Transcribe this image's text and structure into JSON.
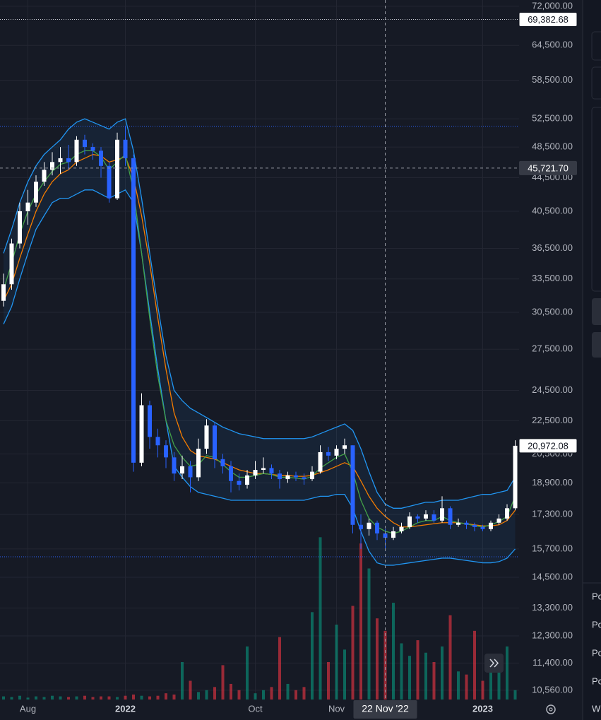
{
  "chart_data": {
    "type": "candlestick",
    "log_scale": true,
    "grid": true,
    "ylim": [
      10290,
      73270
    ],
    "yticks": [
      {
        "value": 72000,
        "label": "72,000.00"
      },
      {
        "value": 64500,
        "label": "64,500.00"
      },
      {
        "value": 58500,
        "label": "58,500.00"
      },
      {
        "value": 52500,
        "label": "52,500.00"
      },
      {
        "value": 48500,
        "label": "48,500.00"
      },
      {
        "value": 44500,
        "label": "44,500.00"
      },
      {
        "value": 40500,
        "label": "40,500.00"
      },
      {
        "value": 36500,
        "label": "36,500.00"
      },
      {
        "value": 33500,
        "label": "33,500.00"
      },
      {
        "value": 30500,
        "label": "30,500.00"
      },
      {
        "value": 27500,
        "label": "27,500.00"
      },
      {
        "value": 24500,
        "label": "24,500.00"
      },
      {
        "value": 22500,
        "label": "22,500.00"
      },
      {
        "value": 20500,
        "label": "20,500.00"
      },
      {
        "value": 18900,
        "label": "18,900.00"
      },
      {
        "value": 17300,
        "label": "17,300.00"
      },
      {
        "value": 15700,
        "label": "15,700.00"
      },
      {
        "value": 14500,
        "label": "14,500.00"
      },
      {
        "value": 13300,
        "label": "13,300.00"
      },
      {
        "value": 12300,
        "label": "12,300.00"
      },
      {
        "value": 11400,
        "label": "11,400.00"
      },
      {
        "value": 10560,
        "label": "10,560.00"
      }
    ],
    "categories": [
      null,
      null,
      null,
      "Aug",
      null,
      null,
      null,
      null,
      null,
      null,
      null,
      null,
      null,
      null,
      null,
      "2022",
      null,
      null,
      null,
      null,
      null,
      null,
      null,
      null,
      null,
      null,
      null,
      null,
      null,
      null,
      null,
      "Oct",
      null,
      null,
      null,
      null,
      null,
      null,
      null,
      null,
      null,
      "Nov",
      null,
      null,
      null,
      null,
      null,
      "22 Nov '22",
      null,
      null,
      null,
      null,
      null,
      null,
      null,
      null,
      null,
      null,
      null,
      "2023",
      null,
      null,
      null,
      null
    ],
    "up_color": "#ffffff",
    "down_color": "#2962ff",
    "open": [
      31500,
      33000,
      37000,
      40500,
      41500,
      44000,
      45500,
      46500,
      47000,
      46500,
      49500,
      48500,
      48000,
      46000,
      42000,
      49500,
      47000,
      20000,
      23500,
      21500,
      21000,
      20300,
      19400,
      19800,
      19200,
      20800,
      22200,
      20200,
      19800,
      19000,
      18800,
      19300,
      19600,
      19700,
      19400,
      19100,
      19300,
      19200,
      19100,
      19500,
      20600,
      20400,
      20800,
      21000,
      16800,
      16600,
      16900,
      16400,
      16200,
      16500,
      16700,
      17200,
      17100,
      17300,
      17000,
      17600,
      16800,
      16900,
      16800,
      16700,
      16600,
      16900,
      17100,
      17600
    ],
    "high": [
      34000,
      37500,
      41500,
      43000,
      44800,
      46500,
      47800,
      48500,
      48800,
      50000,
      50200,
      49000,
      48500,
      46500,
      50500,
      51500,
      47500,
      24300,
      23800,
      22000,
      21300,
      20600,
      20400,
      20100,
      21400,
      22600,
      22400,
      20500,
      20100,
      19400,
      19600,
      20100,
      20300,
      19900,
      19600,
      19500,
      19500,
      19400,
      19800,
      21000,
      20900,
      21000,
      21400,
      21000,
      17300,
      17100,
      17000,
      16600,
      16700,
      16900,
      17400,
      17300,
      17500,
      17500,
      18200,
      17700,
      17100,
      17000,
      16900,
      16800,
      17000,
      17300,
      17800,
      21300
    ],
    "low": [
      31000,
      32500,
      36500,
      39000,
      41000,
      43500,
      44800,
      45000,
      45500,
      46000,
      47500,
      46800,
      44500,
      41500,
      41800,
      46000,
      19500,
      19800,
      20800,
      20300,
      19700,
      19000,
      19100,
      18400,
      19000,
      20500,
      19700,
      19400,
      18400,
      18500,
      18600,
      19100,
      19400,
      19100,
      18600,
      18900,
      19000,
      18800,
      19000,
      19400,
      20100,
      20200,
      20500,
      16400,
      15700,
      16300,
      16100,
      15600,
      16100,
      16400,
      16600,
      16900,
      17000,
      16900,
      16900,
      16600,
      16700,
      16600,
      16500,
      16500,
      16500,
      16800,
      17000,
      17500
    ],
    "close": [
      33000,
      37000,
      40500,
      41500,
      44000,
      45500,
      46500,
      47000,
      46500,
      49500,
      48500,
      48000,
      46000,
      42000,
      49500,
      47000,
      20000,
      23500,
      21500,
      21000,
      20300,
      19400,
      19800,
      19200,
      20800,
      22200,
      20200,
      19800,
      19000,
      18800,
      19300,
      19600,
      19700,
      19400,
      19100,
      19300,
      19200,
      19100,
      19500,
      20600,
      20400,
      20800,
      21000,
      16800,
      16600,
      16900,
      16400,
      16200,
      16500,
      16700,
      17200,
      17100,
      17300,
      17000,
      17600,
      16800,
      16900,
      16800,
      16700,
      16600,
      16900,
      17100,
      17600,
      20972.08
    ],
    "band": {
      "color": "#2196f3",
      "fill": "rgba(33,150,243,0.08)",
      "upper": [
        36000,
        38500,
        41500,
        44000,
        46000,
        47500,
        48500,
        49500,
        51000,
        52000,
        52500,
        52000,
        51500,
        51000,
        52000,
        52500,
        48000,
        42000,
        36000,
        31000,
        27000,
        24500,
        23800,
        23300,
        23000,
        22700,
        22400,
        22100,
        21900,
        21700,
        21600,
        21500,
        21400,
        21400,
        21400,
        21400,
        21400,
        21400,
        21500,
        21700,
        21900,
        22100,
        22300,
        21900,
        20800,
        19500,
        18400,
        17800,
        17600,
        17600,
        17700,
        17800,
        17900,
        17900,
        18000,
        18000,
        18000,
        18100,
        18200,
        18300,
        18300,
        18400,
        18500,
        19200
      ],
      "lower": [
        29500,
        31000,
        33500,
        36000,
        38500,
        40000,
        41500,
        42000,
        42000,
        42500,
        43000,
        43000,
        42500,
        42000,
        42500,
        43000,
        41500,
        36000,
        30500,
        26000,
        22500,
        19800,
        19200,
        18700,
        18400,
        18300,
        18200,
        18100,
        18000,
        18000,
        18000,
        18000,
        18000,
        18000,
        18000,
        18000,
        18000,
        18000,
        18100,
        18200,
        18200,
        18300,
        18300,
        17600,
        16500,
        15600,
        15100,
        15000,
        15000,
        15050,
        15100,
        15150,
        15200,
        15250,
        15300,
        15300,
        15250,
        15200,
        15150,
        15100,
        15100,
        15150,
        15300,
        15700
      ]
    },
    "lines": [
      {
        "color": "#f57c00",
        "values": [
          31500,
          33000,
          35500,
          38000,
          40500,
          42500,
          44000,
          45000,
          45500,
          46500,
          47000,
          47500,
          47300,
          46500,
          46800,
          47200,
          44500,
          40000,
          35000,
          30000,
          26000,
          23000,
          21500,
          20700,
          20400,
          20300,
          20200,
          20000,
          19800,
          19600,
          19500,
          19400,
          19400,
          19350,
          19300,
          19300,
          19250,
          19250,
          19300,
          19450,
          19600,
          19800,
          20000,
          19800,
          19000,
          18200,
          17600,
          17200,
          16900,
          16700,
          16700,
          16750,
          16800,
          16850,
          16900,
          16900,
          16900,
          16850,
          16800,
          16750,
          16750,
          16800,
          17000,
          17500
        ]
      },
      {
        "color": "#43a047",
        "values": [
          32500,
          35000,
          38000,
          40500,
          42500,
          44000,
          45300,
          46200,
          46500,
          47500,
          48000,
          48000,
          47200,
          45500,
          46500,
          47500,
          43000,
          36000,
          30000,
          25500,
          22500,
          21000,
          20300,
          19800,
          19900,
          20400,
          20300,
          19900,
          19500,
          19200,
          19200,
          19300,
          19400,
          19350,
          19200,
          19200,
          19150,
          19100,
          19250,
          19700,
          20000,
          20300,
          20500,
          19500,
          18000,
          17100,
          16700,
          16500,
          16400,
          16500,
          16700,
          16900,
          17000,
          17000,
          17200,
          17000,
          16900,
          16850,
          16750,
          16700,
          16800,
          16950,
          17200,
          18200
        ]
      }
    ],
    "volume": {
      "lim": [
        0,
        300
      ],
      "up_color": "rgba(8,153,129,0.6)",
      "down_color": "rgba(242,54,69,0.6)",
      "values": [
        5,
        4,
        6,
        3,
        5,
        4,
        6,
        5,
        4,
        5,
        6,
        4,
        5,
        5,
        4,
        6,
        8,
        6,
        5,
        6,
        10,
        8,
        60,
        30,
        12,
        15,
        20,
        55,
        25,
        15,
        85,
        10,
        15,
        20,
        100,
        25,
        15,
        20,
        140,
        260,
        60,
        120,
        80,
        150,
        250,
        210,
        130,
        110,
        155,
        90,
        70,
        95,
        75,
        60,
        85,
        135,
        45,
        40,
        110,
        30,
        50,
        70,
        85,
        15
      ]
    },
    "ath_line": {
      "value": 69382.68,
      "label": "69,382.68"
    },
    "range_lines": [
      51400,
      15360
    ],
    "crosshair": {
      "x": "22 Nov '22",
      "price": {
        "value": 45721.7,
        "label": "45,721.70"
      }
    },
    "last_price": {
      "value": 20972.08,
      "label": "20,972.08"
    }
  },
  "sidebar": {
    "items": [
      "Po",
      "Po",
      "Po",
      "Po"
    ],
    "footer": "W"
  }
}
